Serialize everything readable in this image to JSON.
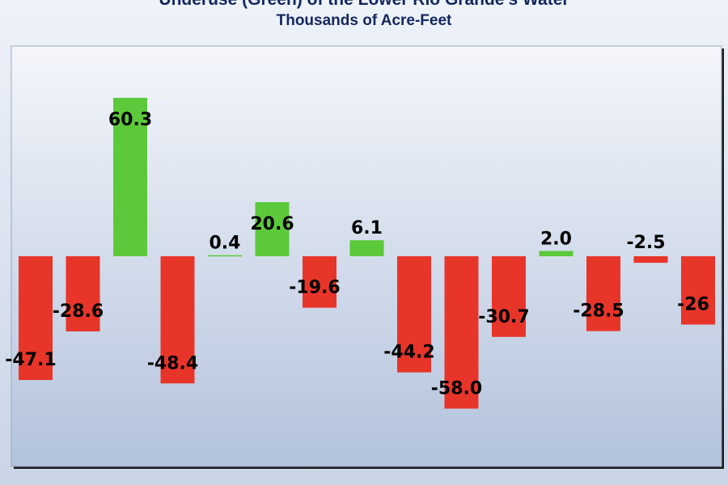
{
  "chart_data": {
    "type": "bar",
    "title": "Underuse (Green) of the Lower Rio Grande's Water",
    "subtitle": "Thousands of Acre-Feet",
    "values": [
      -47.1,
      -28.6,
      60.3,
      -48.4,
      0.4,
      20.6,
      -19.6,
      6.1,
      -44.2,
      -58.0,
      -30.7,
      2.0,
      -28.5,
      -2.5,
      -26
    ],
    "labels": [
      "-47.1",
      "-28.6",
      "60.3",
      "-48.4",
      "0.4",
      "20.6",
      "-19.6",
      "6.1",
      "-44.2",
      "-58.0",
      "-30.7",
      "2.0",
      "-28.5",
      "-2.5",
      "-26"
    ],
    "ylim": [
      -80,
      80
    ],
    "grid": false,
    "colors": {
      "positive": "#5cc93a",
      "negative": "#e8352a",
      "label": "#000000",
      "title": "#14275e"
    }
  }
}
